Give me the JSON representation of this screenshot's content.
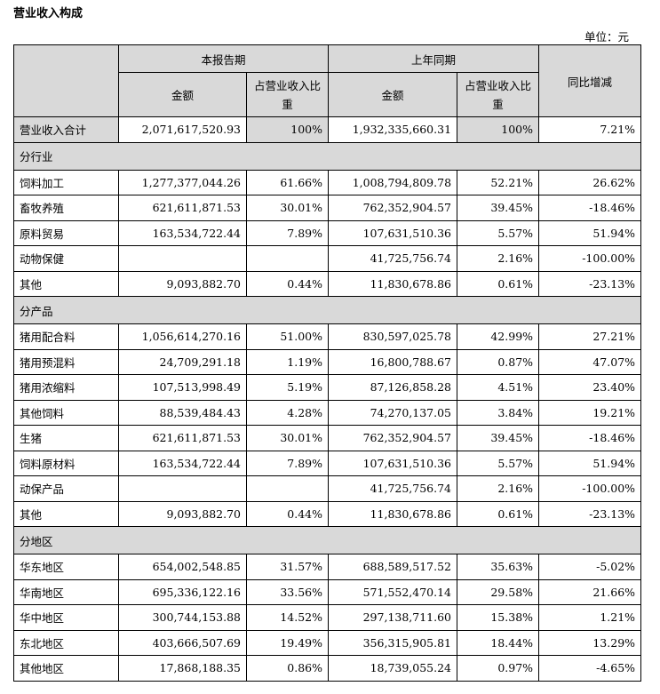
{
  "title": "营业收入构成",
  "unit": "单位：元",
  "headers": {
    "current_period": "本报告期",
    "prior_period": "上年同期",
    "amount": "金额",
    "share": "占营业收入比重",
    "yoy": "同比增减"
  },
  "total": {
    "label": "营业收入合计",
    "cur_amount": "2,071,617,520.93",
    "cur_share": "100%",
    "prev_amount": "1,932,335,660.31",
    "prev_share": "100%",
    "yoy": "7.21%"
  },
  "sections": [
    {
      "title": "分行业",
      "rows": [
        {
          "label": "饲料加工",
          "cur_amount": "1,277,377,044.26",
          "cur_share": "61.66%",
          "prev_amount": "1,008,794,809.78",
          "prev_share": "52.21%",
          "yoy": "26.62%"
        },
        {
          "label": "畜牧养殖",
          "cur_amount": "621,611,871.53",
          "cur_share": "30.01%",
          "prev_amount": "762,352,904.57",
          "prev_share": "39.45%",
          "yoy": "-18.46%"
        },
        {
          "label": "原料贸易",
          "cur_amount": "163,534,722.44",
          "cur_share": "7.89%",
          "prev_amount": "107,631,510.36",
          "prev_share": "5.57%",
          "yoy": "51.94%"
        },
        {
          "label": "动物保健",
          "cur_amount": "",
          "cur_share": "",
          "prev_amount": "41,725,756.74",
          "prev_share": "2.16%",
          "yoy": "-100.00%"
        },
        {
          "label": "其他",
          "cur_amount": "9,093,882.70",
          "cur_share": "0.44%",
          "prev_amount": "11,830,678.86",
          "prev_share": "0.61%",
          "yoy": "-23.13%"
        }
      ]
    },
    {
      "title": "分产品",
      "rows": [
        {
          "label": "猪用配合料",
          "cur_amount": "1,056,614,270.16",
          "cur_share": "51.00%",
          "prev_amount": "830,597,025.78",
          "prev_share": "42.99%",
          "yoy": "27.21%"
        },
        {
          "label": "猪用预混料",
          "cur_amount": "24,709,291.18",
          "cur_share": "1.19%",
          "prev_amount": "16,800,788.67",
          "prev_share": "0.87%",
          "yoy": "47.07%"
        },
        {
          "label": "猪用浓缩料",
          "cur_amount": "107,513,998.49",
          "cur_share": "5.19%",
          "prev_amount": "87,126,858.28",
          "prev_share": "4.51%",
          "yoy": "23.40%"
        },
        {
          "label": "其他饲料",
          "cur_amount": "88,539,484.43",
          "cur_share": "4.28%",
          "prev_amount": "74,270,137.05",
          "prev_share": "3.84%",
          "yoy": "19.21%"
        },
        {
          "label": "生猪",
          "cur_amount": "621,611,871.53",
          "cur_share": "30.01%",
          "prev_amount": "762,352,904.57",
          "prev_share": "39.45%",
          "yoy": "-18.46%"
        },
        {
          "label": "饲料原材料",
          "cur_amount": "163,534,722.44",
          "cur_share": "7.89%",
          "prev_amount": "107,631,510.36",
          "prev_share": "5.57%",
          "yoy": "51.94%"
        },
        {
          "label": "动保产品",
          "cur_amount": "",
          "cur_share": "",
          "prev_amount": "41,725,756.74",
          "prev_share": "2.16%",
          "yoy": "-100.00%"
        },
        {
          "label": "其他",
          "cur_amount": "9,093,882.70",
          "cur_share": "0.44%",
          "prev_amount": "11,830,678.86",
          "prev_share": "0.61%",
          "yoy": "-23.13%"
        }
      ]
    },
    {
      "title": "分地区",
      "rows": [
        {
          "label": "华东地区",
          "cur_amount": "654,002,548.85",
          "cur_share": "31.57%",
          "prev_amount": "688,589,517.52",
          "prev_share": "35.63%",
          "yoy": "-5.02%"
        },
        {
          "label": "华南地区",
          "cur_amount": "695,336,122.16",
          "cur_share": "33.56%",
          "prev_amount": "571,552,470.14",
          "prev_share": "29.58%",
          "yoy": "21.66%"
        },
        {
          "label": "华中地区",
          "cur_amount": "300,744,153.88",
          "cur_share": "14.52%",
          "prev_amount": "297,138,711.60",
          "prev_share": "15.38%",
          "yoy": "1.21%"
        },
        {
          "label": "东北地区",
          "cur_amount": "403,666,507.69",
          "cur_share": "19.49%",
          "prev_amount": "356,315,905.81",
          "prev_share": "18.44%",
          "yoy": "13.29%"
        },
        {
          "label": "其他地区",
          "cur_amount": "17,868,188.35",
          "cur_share": "0.86%",
          "prev_amount": "18,739,055.24",
          "prev_share": "0.97%",
          "yoy": "-4.65%"
        }
      ]
    }
  ]
}
